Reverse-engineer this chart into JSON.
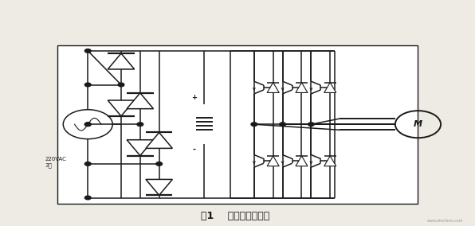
{
  "title": "图1    通用变频器电路",
  "bg_color": "#eeeae4",
  "line_color": "#1a1a1a",
  "label_220vac": "220VAC\n3相",
  "label_M": "M",
  "watermark": "www.elecfans.com",
  "fig_width": 5.96,
  "fig_height": 2.84,
  "dpi": 100
}
